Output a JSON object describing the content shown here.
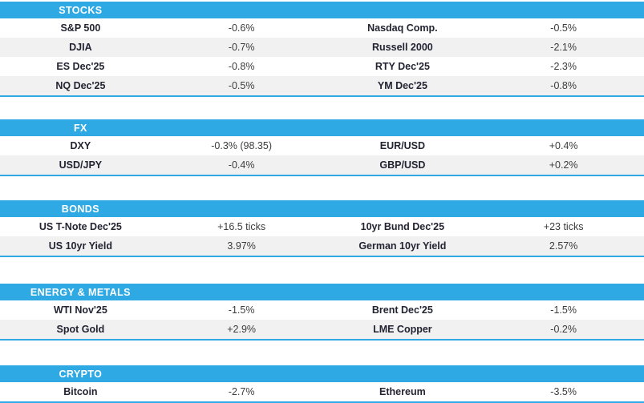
{
  "theme": {
    "accent": "#2FA9E4",
    "stripe": "#F1F1F2",
    "header_text": "#FFFFFF",
    "label_color": "#232332",
    "value_color": "#3C3C3C"
  },
  "sections": [
    {
      "title": "STOCKS",
      "rows": [
        {
          "l1": "S&P 500",
          "v1": "-0.6%",
          "l2": "Nasdaq Comp.",
          "v2": "-0.5%"
        },
        {
          "l1": "DJIA",
          "v1": "-0.7%",
          "l2": "Russell 2000",
          "v2": "-2.1%"
        },
        {
          "l1": "ES Dec'25",
          "v1": "-0.8%",
          "l2": "RTY Dec'25",
          "v2": "-2.3%"
        },
        {
          "l1": "NQ Dec'25",
          "v1": "-0.5%",
          "l2": "YM Dec'25",
          "v2": "-0.8%"
        }
      ]
    },
    {
      "title": "FX",
      "rows": [
        {
          "l1": "DXY",
          "v1": "-0.3% (98.35)",
          "l2": "EUR/USD",
          "v2": "+0.4%"
        },
        {
          "l1": "USD/JPY",
          "v1": "-0.4%",
          "l2": "GBP/USD",
          "v2": "+0.2%"
        }
      ]
    },
    {
      "title": "BONDS",
      "rows": [
        {
          "l1": "US T-Note Dec'25",
          "v1": "+16.5 ticks",
          "l2": "10yr Bund Dec'25",
          "v2": "+23 ticks"
        },
        {
          "l1": "US 10yr Yield",
          "v1": "3.97%",
          "l2": "German 10yr Yield",
          "v2": "2.57%"
        }
      ]
    },
    {
      "title": "ENERGY & METALS",
      "rows": [
        {
          "l1": "WTI Nov'25",
          "v1": "-1.5%",
          "l2": "Brent Dec'25",
          "v2": "-1.5%"
        },
        {
          "l1": "Spot Gold",
          "v1": "+2.9%",
          "l2": "LME Copper",
          "v2": "-0.2%"
        }
      ]
    },
    {
      "title": "CRYPTO",
      "rows": [
        {
          "l1": "Bitcoin",
          "v1": "-2.7%",
          "l2": "Ethereum",
          "v2": "-3.5%"
        }
      ]
    }
  ]
}
